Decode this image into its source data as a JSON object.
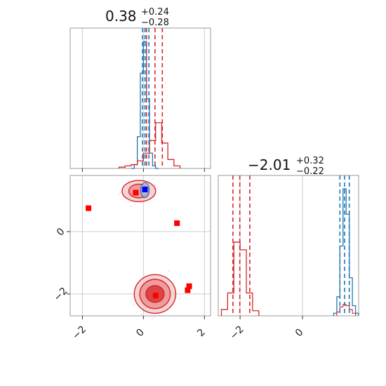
{
  "chart_data": {
    "type": "corner",
    "panels": [
      {
        "name": "param-1-marginal",
        "type": "histogram",
        "title_value": "0.38",
        "title_upper": "+0.24",
        "title_lower": "−0.28",
        "xlim": [
          -2.4,
          2.2
        ],
        "blue_quantiles": [
          -0.03,
          0.05,
          0.18
        ],
        "red_quantiles": [
          0.1,
          0.38,
          0.62
        ],
        "blue_hist": {
          "edges": [
            -0.4,
            -0.3,
            -0.2,
            -0.1,
            0.0,
            0.1,
            0.2,
            0.3,
            0.4,
            0.5
          ],
          "heights": [
            0.0,
            0.03,
            0.25,
            0.75,
            1.0,
            0.55,
            0.12,
            0.02,
            0.0
          ]
        },
        "red_hist": {
          "edges": [
            -0.8,
            -0.6,
            -0.4,
            -0.2,
            0.0,
            0.2,
            0.4,
            0.6,
            0.8,
            1.0,
            1.2
          ],
          "heights": [
            0.01,
            0.02,
            0.03,
            0.06,
            0.12,
            0.22,
            0.36,
            0.2,
            0.07,
            0.02
          ]
        }
      },
      {
        "name": "param-2-marginal",
        "type": "histogram",
        "title_value": "−2.01",
        "title_upper": "+0.32",
        "title_lower": "−0.22",
        "xlim": [
          -2.7,
          1.8
        ],
        "xticks": [
          "−2",
          "0"
        ],
        "xtick_values": [
          -2,
          0
        ],
        "blue_quantiles": [
          1.2,
          1.35,
          1.5
        ],
        "red_quantiles": [
          -2.23,
          -2.01,
          -1.69
        ],
        "blue_hist": {
          "edges": [
            1.0,
            1.1,
            1.2,
            1.3,
            1.4,
            1.5,
            1.6,
            1.7,
            1.8
          ],
          "heights": [
            0.02,
            0.15,
            0.55,
            1.0,
            0.8,
            0.3,
            0.08,
            0.02
          ]
        },
        "red_hist": {
          "edges": [
            -2.6,
            -2.4,
            -2.2,
            -2.0,
            -1.8,
            -1.6,
            -1.4
          ],
          "heights": [
            0.05,
            0.18,
            0.58,
            0.52,
            0.18,
            0.04
          ]
        }
      },
      {
        "name": "joint-2d",
        "type": "scatter-contour",
        "xlim": [
          -2.4,
          2.2
        ],
        "ylim": [
          -2.7,
          1.8
        ],
        "xticks": [
          "−2",
          "0",
          "2"
        ],
        "xtick_values": [
          -2,
          0,
          2
        ],
        "yticks": [
          "−2",
          "0"
        ],
        "ytick_values": [
          -2,
          0
        ],
        "red_points": [
          {
            "x": -1.8,
            "y": 0.75
          },
          {
            "x": -0.25,
            "y": 1.25
          },
          {
            "x": 1.1,
            "y": 0.27
          },
          {
            "x": 1.5,
            "y": -1.75
          },
          {
            "x": 1.45,
            "y": -1.88
          },
          {
            "x": 0.4,
            "y": -2.05
          }
        ],
        "blue_points": [
          {
            "x": 0.05,
            "y": 1.35
          }
        ],
        "red_contour_centers": [
          {
            "x": 0.38,
            "y": -2.0,
            "rx": [
              0.68,
              0.5,
              0.3
            ],
            "ry": [
              0.62,
              0.47,
              0.27
            ]
          },
          {
            "x": -0.15,
            "y": 1.3,
            "rx": [
              0.55,
              0.33
            ],
            "ry": [
              0.34,
              0.22
            ]
          }
        ],
        "blue_contour_center": {
          "x": 0.05,
          "y": 1.33,
          "rx": 0.14,
          "ry": 0.24
        }
      }
    ],
    "colors": {
      "blue": "#1f77b4",
      "red": "#d62728",
      "red_marker": "#ff0000",
      "blue_marker": "#0000ff",
      "grid": "#cccccc",
      "frame": "#999999"
    }
  }
}
